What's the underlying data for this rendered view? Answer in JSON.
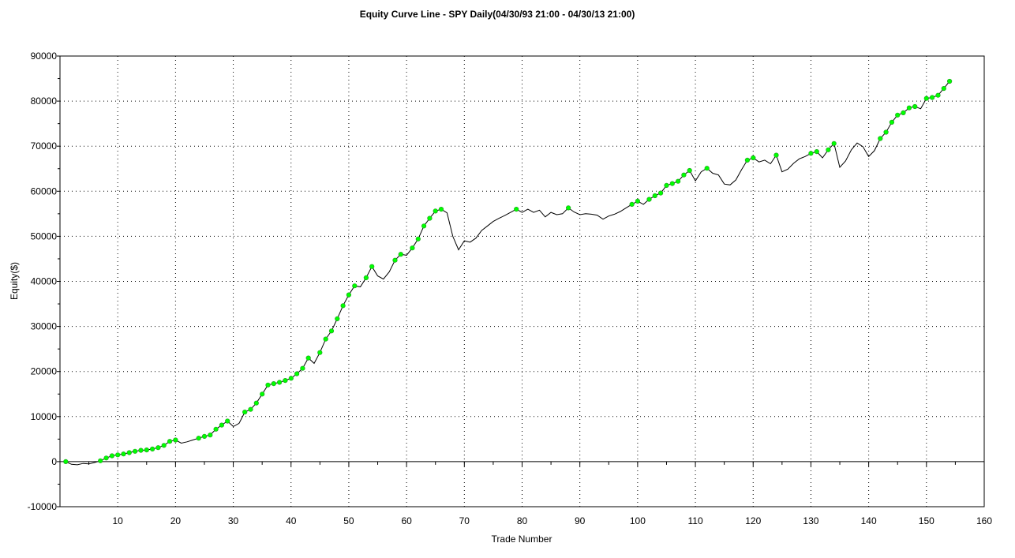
{
  "chart_data": {
    "type": "line",
    "title": "Equity Curve Line - SPY Daily(04/30/93 21:00 - 04/30/13 21:00)",
    "xlabel": "Trade Number",
    "ylabel": "Equity($)",
    "xlim": [
      0,
      160
    ],
    "ylim": [
      -10000,
      90000
    ],
    "x_ticks": [
      10,
      20,
      30,
      40,
      50,
      60,
      70,
      80,
      90,
      100,
      110,
      120,
      130,
      140,
      150,
      160
    ],
    "y_ticks": [
      -10000,
      0,
      10000,
      20000,
      30000,
      40000,
      50000,
      60000,
      70000,
      80000,
      90000
    ],
    "grid": true,
    "colors": {
      "line": "#000000",
      "marker": "#00ff00",
      "marker_edge": "#1f9a1f",
      "grid": "#000000"
    },
    "series": [
      {
        "values": [
          [
            1,
            0
          ],
          [
            2,
            -600
          ],
          [
            3,
            -700
          ],
          [
            4,
            -400
          ],
          [
            5,
            -500
          ],
          [
            6,
            -200
          ],
          [
            7,
            200
          ],
          [
            8,
            800
          ],
          [
            9,
            1300
          ],
          [
            10,
            1500
          ],
          [
            11,
            1700
          ],
          [
            12,
            2000
          ],
          [
            13,
            2300
          ],
          [
            14,
            2500
          ],
          [
            15,
            2600
          ],
          [
            16,
            2800
          ],
          [
            17,
            3100
          ],
          [
            18,
            3600
          ],
          [
            19,
            4500
          ],
          [
            20,
            4800
          ],
          [
            21,
            4100
          ],
          [
            22,
            4400
          ],
          [
            23,
            4800
          ],
          [
            24,
            5200
          ],
          [
            25,
            5600
          ],
          [
            26,
            5900
          ],
          [
            27,
            7200
          ],
          [
            28,
            8100
          ],
          [
            29,
            9000
          ],
          [
            30,
            7800
          ],
          [
            31,
            8500
          ],
          [
            32,
            11000
          ],
          [
            33,
            11600
          ],
          [
            34,
            13000
          ],
          [
            35,
            15000
          ],
          [
            36,
            17000
          ],
          [
            37,
            17300
          ],
          [
            38,
            17600
          ],
          [
            39,
            18000
          ],
          [
            40,
            18500
          ],
          [
            41,
            19500
          ],
          [
            42,
            20700
          ],
          [
            43,
            23000
          ],
          [
            44,
            21800
          ],
          [
            45,
            24200
          ],
          [
            46,
            27200
          ],
          [
            47,
            29000
          ],
          [
            48,
            31700
          ],
          [
            49,
            34600
          ],
          [
            50,
            37000
          ],
          [
            51,
            39000
          ],
          [
            52,
            38800
          ],
          [
            53,
            40800
          ],
          [
            54,
            43300
          ],
          [
            55,
            41200
          ],
          [
            56,
            40500
          ],
          [
            57,
            42100
          ],
          [
            58,
            44700
          ],
          [
            59,
            46000
          ],
          [
            60,
            45800
          ],
          [
            61,
            47400
          ],
          [
            62,
            49400
          ],
          [
            63,
            52300
          ],
          [
            64,
            54000
          ],
          [
            65,
            55600
          ],
          [
            66,
            56000
          ],
          [
            67,
            55200
          ],
          [
            68,
            50000
          ],
          [
            69,
            47000
          ],
          [
            70,
            49000
          ],
          [
            71,
            48700
          ],
          [
            72,
            49600
          ],
          [
            73,
            51300
          ],
          [
            74,
            52300
          ],
          [
            75,
            53300
          ],
          [
            76,
            54000
          ],
          [
            77,
            54600
          ],
          [
            78,
            55300
          ],
          [
            79,
            56000
          ],
          [
            80,
            55300
          ],
          [
            81,
            56000
          ],
          [
            82,
            55300
          ],
          [
            83,
            55800
          ],
          [
            84,
            54300
          ],
          [
            85,
            55300
          ],
          [
            86,
            54800
          ],
          [
            87,
            55000
          ],
          [
            88,
            56300
          ],
          [
            89,
            55400
          ],
          [
            90,
            54800
          ],
          [
            91,
            55000
          ],
          [
            92,
            54900
          ],
          [
            93,
            54700
          ],
          [
            94,
            53800
          ],
          [
            95,
            54500
          ],
          [
            96,
            54900
          ],
          [
            97,
            55500
          ],
          [
            98,
            56300
          ],
          [
            99,
            57100
          ],
          [
            100,
            57800
          ],
          [
            101,
            57100
          ],
          [
            102,
            58200
          ],
          [
            103,
            59000
          ],
          [
            104,
            59600
          ],
          [
            105,
            61300
          ],
          [
            106,
            61700
          ],
          [
            107,
            62200
          ],
          [
            108,
            63600
          ],
          [
            109,
            64600
          ],
          [
            110,
            62300
          ],
          [
            111,
            64300
          ],
          [
            112,
            65100
          ],
          [
            113,
            64000
          ],
          [
            114,
            63600
          ],
          [
            115,
            61600
          ],
          [
            116,
            61400
          ],
          [
            117,
            62500
          ],
          [
            118,
            64800
          ],
          [
            119,
            66900
          ],
          [
            120,
            67400
          ],
          [
            121,
            66500
          ],
          [
            122,
            66900
          ],
          [
            123,
            66100
          ],
          [
            124,
            68000
          ],
          [
            125,
            64300
          ],
          [
            126,
            64900
          ],
          [
            127,
            66200
          ],
          [
            128,
            67200
          ],
          [
            129,
            67700
          ],
          [
            130,
            68400
          ],
          [
            131,
            68800
          ],
          [
            132,
            67400
          ],
          [
            133,
            69200
          ],
          [
            134,
            70600
          ],
          [
            135,
            65300
          ],
          [
            136,
            66700
          ],
          [
            137,
            69200
          ],
          [
            138,
            70700
          ],
          [
            139,
            69900
          ],
          [
            140,
            67700
          ],
          [
            141,
            69000
          ],
          [
            142,
            71700
          ],
          [
            143,
            73100
          ],
          [
            144,
            75300
          ],
          [
            145,
            76900
          ],
          [
            146,
            77400
          ],
          [
            147,
            78500
          ],
          [
            148,
            78800
          ],
          [
            149,
            78300
          ],
          [
            150,
            80600
          ],
          [
            151,
            80800
          ],
          [
            152,
            81300
          ],
          [
            153,
            82800
          ],
          [
            154,
            84400
          ]
        ],
        "markers": [
          1,
          7,
          8,
          9,
          10,
          11,
          12,
          13,
          14,
          15,
          16,
          17,
          18,
          19,
          20,
          24,
          25,
          26,
          27,
          28,
          29,
          32,
          33,
          34,
          35,
          36,
          37,
          38,
          39,
          40,
          41,
          42,
          43,
          45,
          46,
          47,
          48,
          49,
          50,
          51,
          53,
          54,
          58,
          59,
          61,
          62,
          63,
          64,
          65,
          66,
          79,
          88,
          99,
          100,
          102,
          103,
          104,
          105,
          106,
          107,
          108,
          109,
          112,
          119,
          120,
          124,
          130,
          131,
          133,
          134,
          142,
          143,
          144,
          145,
          146,
          147,
          148,
          150,
          151,
          152,
          153,
          154
        ]
      }
    ]
  }
}
